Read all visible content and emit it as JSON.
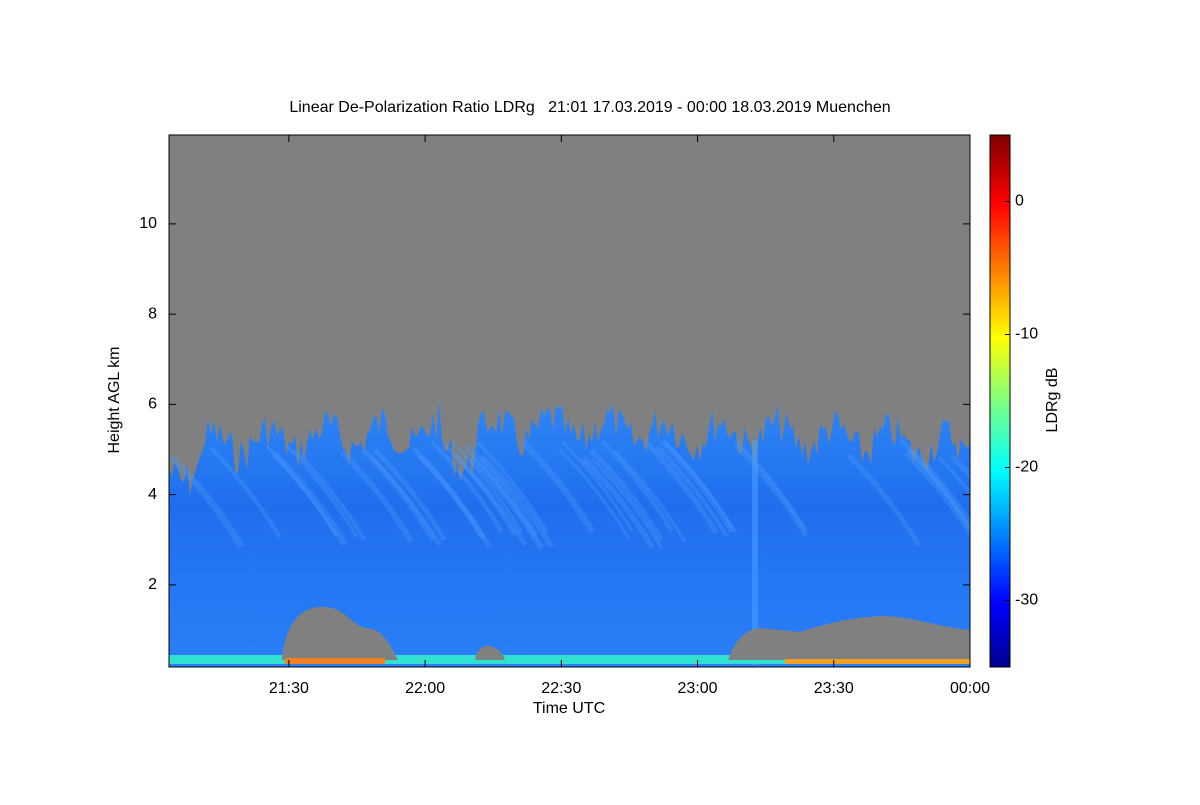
{
  "chart_data": {
    "type": "heatmap",
    "title": "Linear De-Polarization Ratio LDRg   21:01 17.03.2019 - 00:00 18.03.2019 Muenchen",
    "x_label": "Time UTC",
    "y_label": "Height AGL km",
    "colorbar_label": "LDRg dB",
    "xlim": [
      21.06,
      24.0
    ],
    "xticks": [
      {
        "value": 21.5,
        "label": "21:30"
      },
      {
        "value": 22.0,
        "label": "22:00"
      },
      {
        "value": 22.5,
        "label": "22:30"
      },
      {
        "value": 23.0,
        "label": "23:00"
      },
      {
        "value": 23.5,
        "label": "23:30"
      },
      {
        "value": 24.0,
        "label": "00:00"
      }
    ],
    "ylim": [
      0.18,
      11.97
    ],
    "yticks": [
      2,
      4,
      6,
      8,
      10
    ],
    "clim": [
      -35,
      5
    ],
    "cticks": [
      0,
      -10,
      -20,
      -30
    ]
  }
}
